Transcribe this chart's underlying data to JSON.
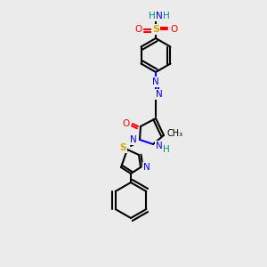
{
  "bg_color": "#ebebeb",
  "atom_colors": {
    "C": "#000000",
    "N": "#0000ff",
    "O": "#ff0000",
    "S": "#ccaa00",
    "H": "#008888"
  },
  "bond_color": "#000000"
}
